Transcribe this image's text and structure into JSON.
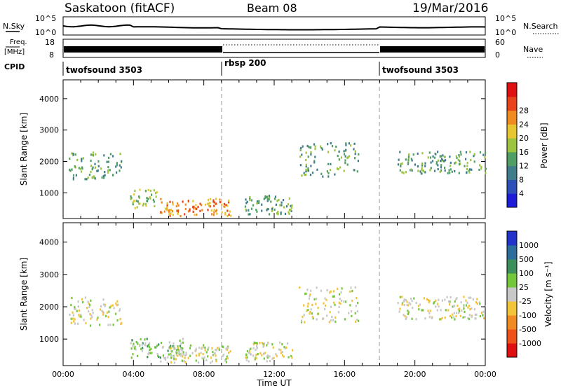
{
  "header": {
    "station": "Saskatoon (fitACF)",
    "beam": "Beam 08",
    "date": "19/Mar/2016"
  },
  "top_panels": {
    "nsky": {
      "label": "N.Sky",
      "ticks_left": [
        "10^5",
        "10^0"
      ],
      "ticks_right": [
        "10^5",
        "10^0"
      ],
      "right_label": "N.Search"
    },
    "freq": {
      "label_line1": "Freq.",
      "label_line2": "[MHz]",
      "ticks_left": [
        "18",
        "8"
      ],
      "ticks_right": [
        "60",
        "0"
      ],
      "right_label": "Nave"
    },
    "cpid": {
      "label": "CPID",
      "segments": [
        {
          "name": "twofsound 3503",
          "start": 0,
          "end": 9
        },
        {
          "name": "rbsp 200",
          "start": 9,
          "end": 18
        },
        {
          "name": "twofsound 3503",
          "start": 18,
          "end": 24
        }
      ]
    }
  },
  "chart_data": [
    {
      "type": "heatmap",
      "title": "",
      "xlabel": "Time UT",
      "ylabel": "Slant Range [km]",
      "xlim": [
        0,
        24
      ],
      "ylim": [
        180,
        4600
      ],
      "y_ticks": [
        "1000",
        "2000",
        "3000",
        "4000"
      ],
      "x_ticks": [
        "00:00",
        "04:00",
        "08:00",
        "12:00",
        "16:00",
        "20:00",
        "00:00"
      ],
      "grid": false,
      "colorbar": {
        "label": "Power [dB]",
        "ticks": [
          "4",
          "8",
          "12",
          "16",
          "20",
          "24",
          "28"
        ],
        "range": [
          0,
          30
        ],
        "colors": [
          "#1d1dd9",
          "#2c4fb8",
          "#3f7d8a",
          "#4f9e63",
          "#9cc43e",
          "#e8c632",
          "#f08a22",
          "#e8431a",
          "#e01010"
        ]
      },
      "echo_regions": [
        {
          "t_start": 0.3,
          "t_end": 3.3,
          "range_start": 1400,
          "range_end": 2300,
          "level": 12
        },
        {
          "t_start": 3.8,
          "t_end": 5.3,
          "range_start": 500,
          "range_end": 1100,
          "level": 16
        },
        {
          "t_start": 5.5,
          "t_end": 9.5,
          "range_start": 250,
          "range_end": 800,
          "level": 26
        },
        {
          "t_start": 10.3,
          "t_end": 13.0,
          "range_start": 300,
          "range_end": 900,
          "level": 12
        },
        {
          "t_start": 13.4,
          "t_end": 16.8,
          "range_start": 1500,
          "range_end": 2600,
          "level": 14
        },
        {
          "t_start": 19.0,
          "t_end": 24.0,
          "range_start": 1600,
          "range_end": 2300,
          "level": 12
        }
      ]
    },
    {
      "type": "heatmap",
      "title": "",
      "xlabel": "Time UT",
      "ylabel": "Slant Range [km]",
      "xlim": [
        0,
        24
      ],
      "ylim": [
        180,
        4600
      ],
      "y_ticks": [
        "1000",
        "2000",
        "3000",
        "4000"
      ],
      "x_ticks": [
        "00:00",
        "04:00",
        "08:00",
        "12:00",
        "16:00",
        "20:00",
        "00:00"
      ],
      "grid": false,
      "colorbar": {
        "label": "Velocity [m s⁻¹]",
        "ticks": [
          "1000",
          "500",
          "100",
          "25",
          "-25",
          "-100",
          "-500",
          "-1000"
        ],
        "colors": [
          "#2233cc",
          "#2c6d9d",
          "#3b8f5a",
          "#74c63a",
          "#c8c8c8",
          "#f3c33a",
          "#f08a22",
          "#ee5218",
          "#e01010"
        ]
      },
      "echo_regions": [
        {
          "t_start": 0.3,
          "t_end": 3.3,
          "range_start": 1400,
          "range_end": 2300,
          "level": "25"
        },
        {
          "t_start": 3.8,
          "t_end": 6.8,
          "range_start": 400,
          "range_end": 1000,
          "level": "100"
        },
        {
          "t_start": 5.5,
          "t_end": 9.5,
          "range_start": 250,
          "range_end": 800,
          "level": "-25"
        },
        {
          "t_start": 10.3,
          "t_end": 13.0,
          "range_start": 300,
          "range_end": 900,
          "level": "-25"
        },
        {
          "t_start": 13.4,
          "t_end": 16.8,
          "range_start": 1500,
          "range_end": 2600,
          "level": "25"
        },
        {
          "t_start": 19.0,
          "t_end": 24.0,
          "range_start": 1600,
          "range_end": 2300,
          "level": "25"
        }
      ]
    }
  ]
}
